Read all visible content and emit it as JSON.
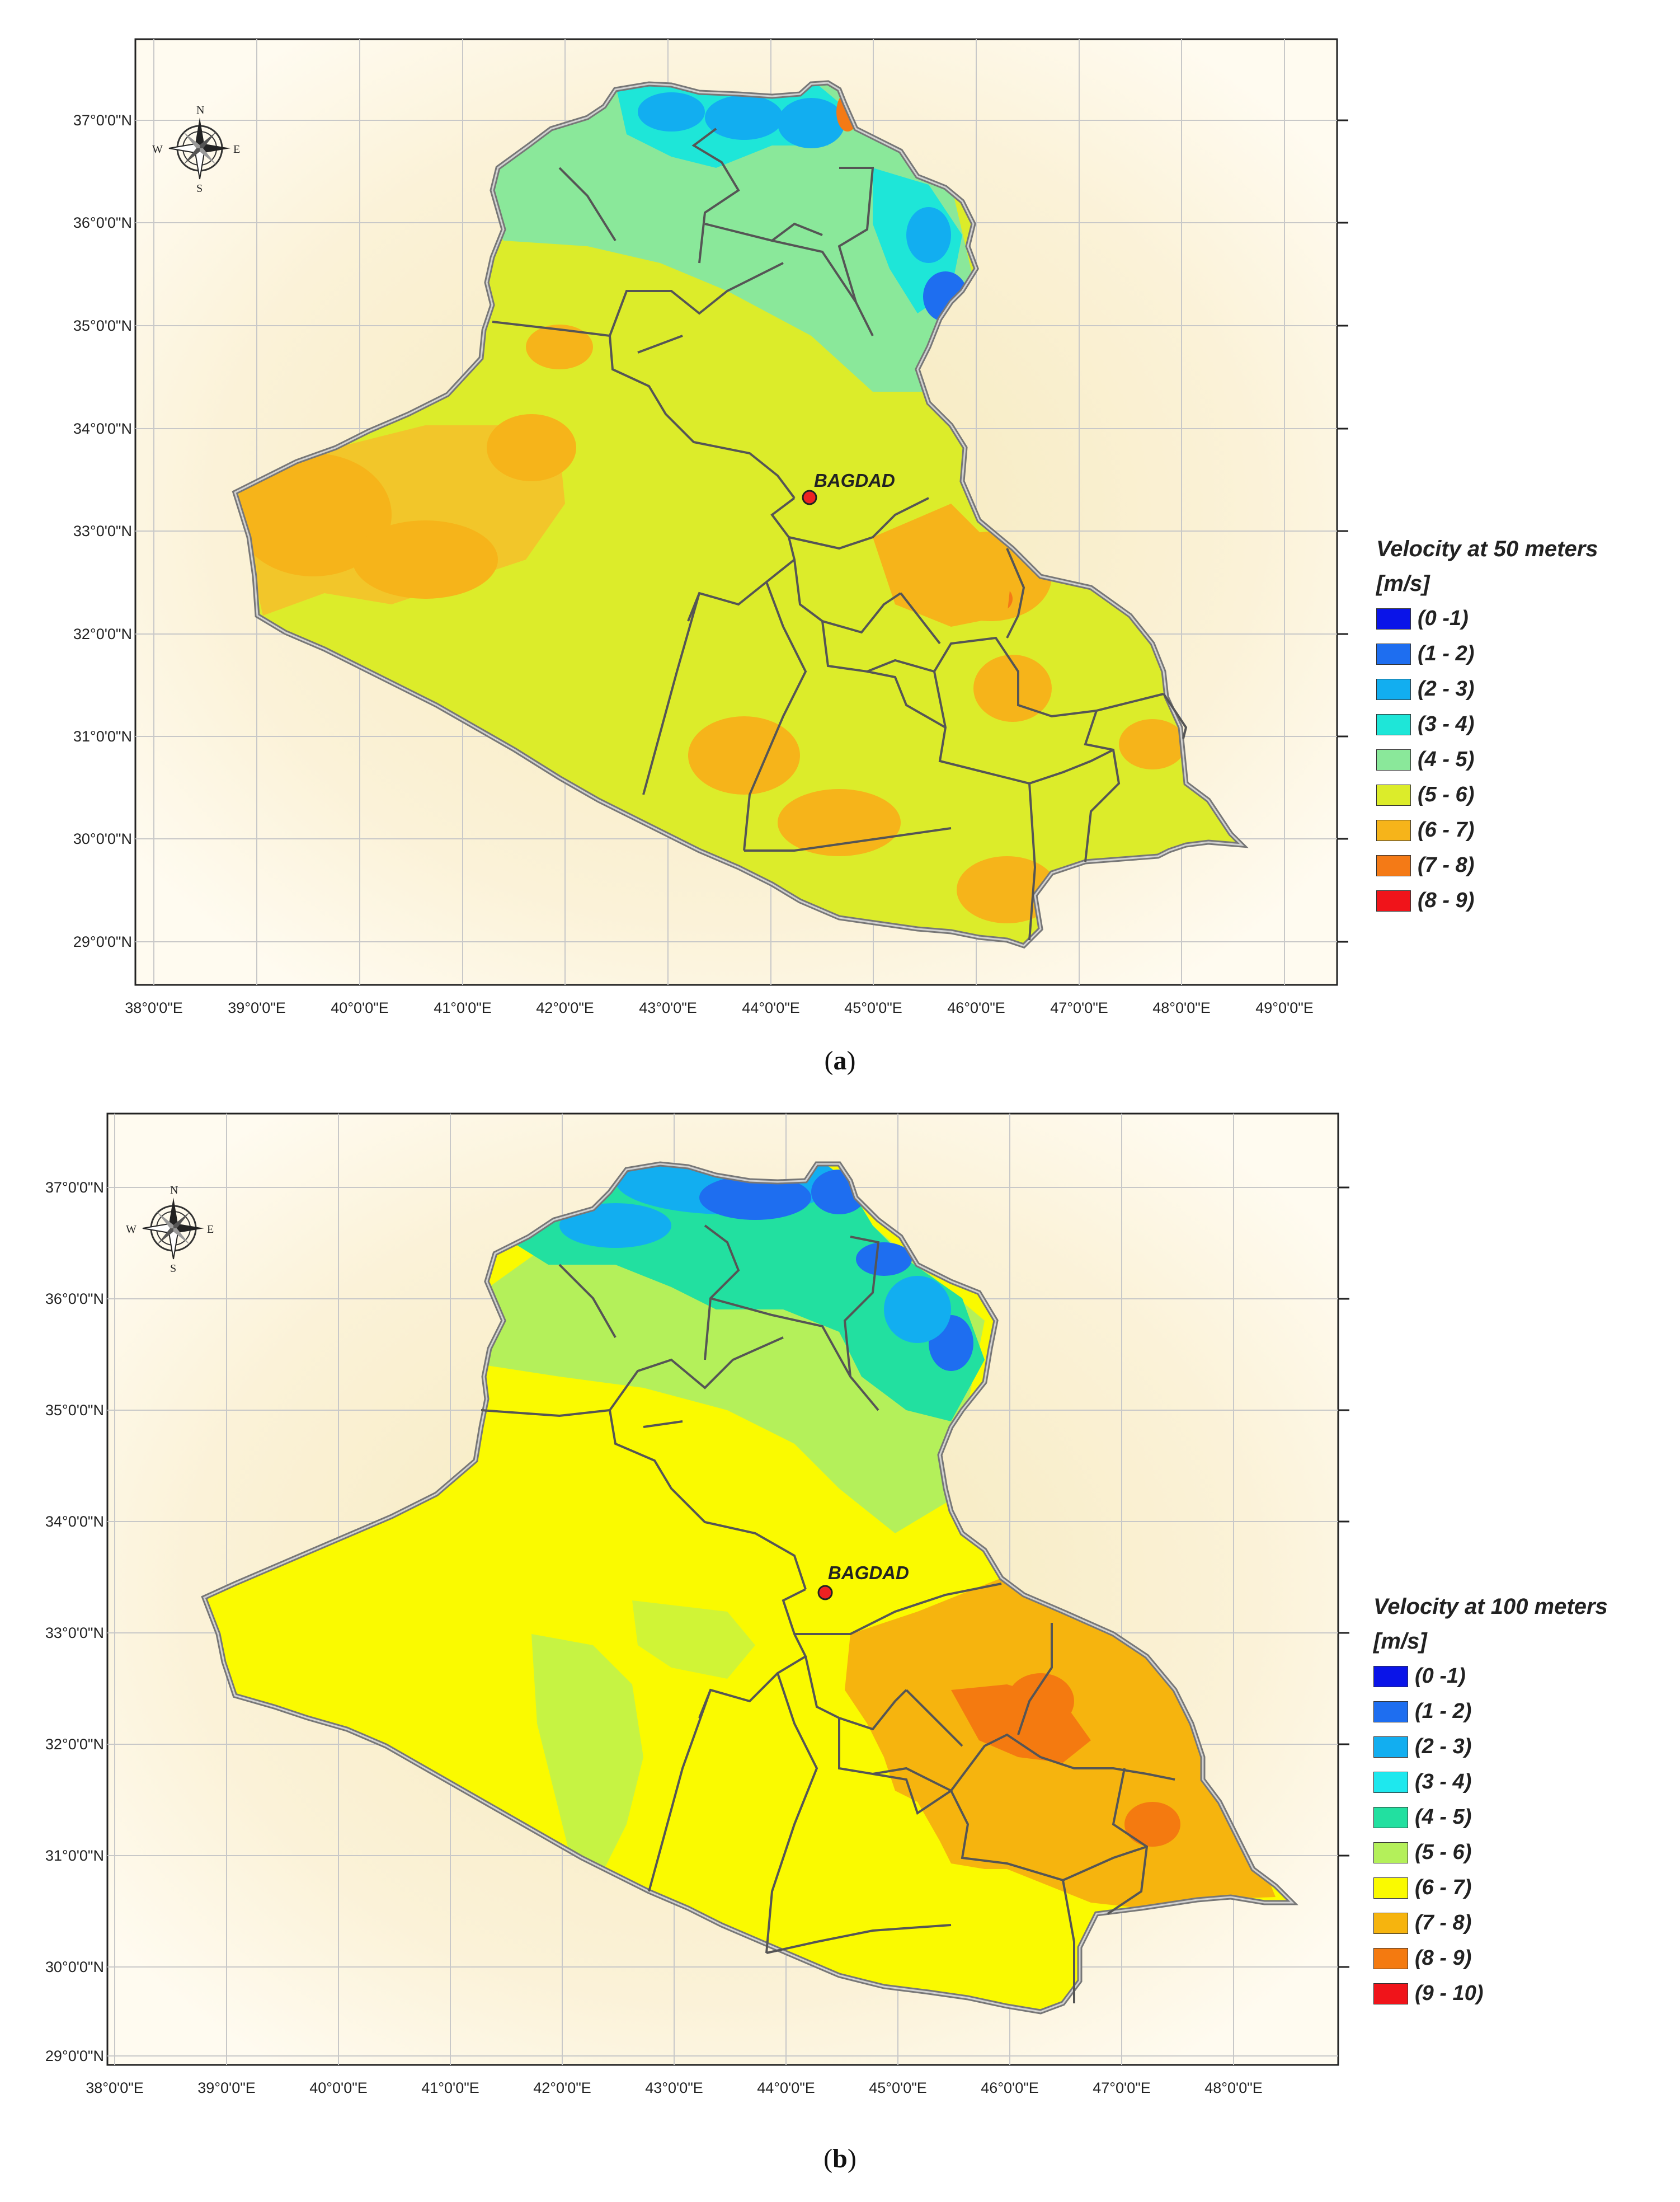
{
  "panels": [
    {
      "id": "a",
      "caption_letter": "a",
      "legend_title_line1": "Velocity at 50 meters",
      "legend_title_line2": "[m/s]",
      "city": "BAGDAD",
      "lat_labels": [
        "37°0'0\"N",
        "36°0'0\"N",
        "35°0'0\"N",
        "34°0'0\"N",
        "33°0'0\"N",
        "32°0'0\"N",
        "31°0'0\"N",
        "30°0'0\"N",
        "29°0'0\"N"
      ],
      "lon_labels": [
        "38°0'0\"E",
        "39°0'0\"E",
        "40°0'0\"E",
        "41°0'0\"E",
        "42°0'0\"E",
        "43°0'0\"E",
        "44°0'0\"E",
        "45°0'0\"E",
        "46°0'0\"E",
        "47°0'0\"E",
        "48°0'0\"E",
        "49°0'0\"E"
      ],
      "legend": [
        {
          "label": "(0 -1)",
          "color": "#0a14e8"
        },
        {
          "label": "(1 - 2)",
          "color": "#1e6ef0"
        },
        {
          "label": "(2 - 3)",
          "color": "#12aef0"
        },
        {
          "label": "(3 - 4)",
          "color": "#1ee6d8"
        },
        {
          "label": "(4 - 5)",
          "color": "#8ae89a"
        },
        {
          "label": "(5 - 6)",
          "color": "#dcec2a"
        },
        {
          "label": "(6 - 7)",
          "color": "#f6b41a"
        },
        {
          "label": "(7 - 8)",
          "color": "#f47a16"
        },
        {
          "label": "(8 - 9)",
          "color": "#f0141a"
        }
      ]
    },
    {
      "id": "b",
      "caption_letter": "b",
      "legend_title_line1": "Velocity at 100  meters",
      "legend_title_line2": "[m/s]",
      "city": "BAGDAD",
      "lat_labels": [
        "37°0'0\"N",
        "36°0'0\"N",
        "35°0'0\"N",
        "34°0'0\"N",
        "33°0'0\"N",
        "32°0'0\"N",
        "31°0'0\"N",
        "30°0'0\"N",
        "29°0'0\"N"
      ],
      "lon_labels": [
        "38°0'0\"E",
        "39°0'0\"E",
        "40°0'0\"E",
        "41°0'0\"E",
        "42°0'0\"E",
        "43°0'0\"E",
        "44°0'0\"E",
        "45°0'0\"E",
        "46°0'0\"E",
        "47°0'0\"E",
        "48°0'0\"E"
      ],
      "legend": [
        {
          "label": "(0 -1)",
          "color": "#0a14e8"
        },
        {
          "label": "(1 - 2)",
          "color": "#1e6ef0"
        },
        {
          "label": "(2 - 3)",
          "color": "#12aef0"
        },
        {
          "label": "(3 - 4)",
          "color": "#1ee8ee"
        },
        {
          "label": "(4 - 5)",
          "color": "#22e0a0"
        },
        {
          "label": "(5 - 6)",
          "color": "#b4f05a"
        },
        {
          "label": "(6 - 7)",
          "color": "#fafa00"
        },
        {
          "label": "(7 - 8)",
          "color": "#f6b40e"
        },
        {
          "label": "(8 - 9)",
          "color": "#f47a10"
        },
        {
          "label": "(9 - 10)",
          "color": "#f0141a"
        }
      ]
    }
  ],
  "compass": {
    "n": "N",
    "s": "S",
    "e": "E",
    "w": "W"
  }
}
